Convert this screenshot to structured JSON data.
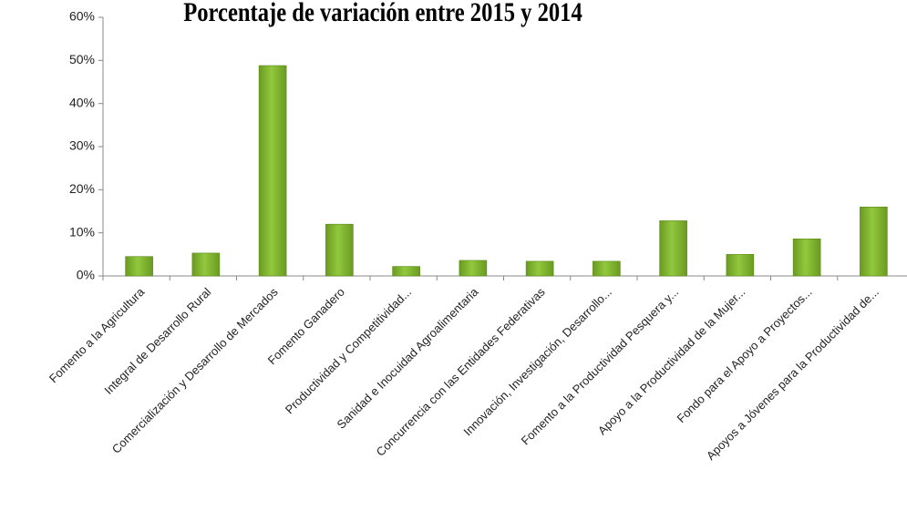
{
  "chart_data": {
    "type": "bar",
    "title": "Porcentaje de variación entre 2015 y 2014",
    "categories": [
      "Fomento a la Agricultura",
      "Integral de Desarrollo Rural",
      "Comercialización y Desarrollo de Mercados",
      "Fomento Ganadero",
      "Productividad y Competitividad...",
      "Sanidad e Inocuidad Agroalimentaria",
      "Concurrencia con las Entidades Federativas",
      "Innovación, Investigación, Desarrollo...",
      "Fomento a la Productividad Pesquera y...",
      "Apoyo a la Productividad de la Mujer...",
      "Fondo para el Apoyo a Proyectos...",
      "Apoyos a Jóvenes para la Productividad de..."
    ],
    "values": [
      4.5,
      5.3,
      48.8,
      12.0,
      2.2,
      3.6,
      3.4,
      3.4,
      12.8,
      5.0,
      8.6,
      16.0
    ],
    "color": "#92c83e",
    "ylim": [
      0,
      60
    ],
    "yticks": [
      {
        "value": 0,
        "label": "0%"
      },
      {
        "value": 10,
        "label": "10%"
      },
      {
        "value": 20,
        "label": "20%"
      },
      {
        "value": 30,
        "label": "30%"
      },
      {
        "value": 40,
        "label": "40%"
      },
      {
        "value": 50,
        "label": "50%"
      },
      {
        "value": 60,
        "label": "60%"
      }
    ],
    "grid": false
  }
}
